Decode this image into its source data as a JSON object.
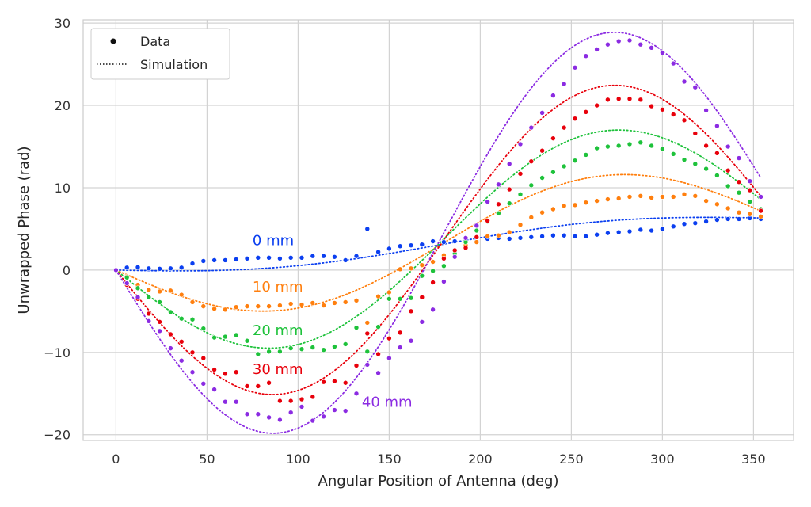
{
  "chart_data": {
    "type": "scatter",
    "title": "",
    "xlabel": "Angular Position of Antenna (deg)",
    "ylabel": "Unwrapped Phase (rad)",
    "xlim": [
      -18,
      372
    ],
    "ylim": [
      -20.7,
      30.4
    ],
    "xticks": [
      0,
      50,
      100,
      150,
      200,
      250,
      300,
      350
    ],
    "yticks": [
      -20,
      -10,
      0,
      10,
      20,
      30
    ],
    "ytick_labels": [
      "−20",
      "−10",
      "0",
      "10",
      "20",
      "30"
    ],
    "grid": true,
    "legend": {
      "placement": "top-left",
      "entries": [
        {
          "label": "Data",
          "marker": "dot"
        },
        {
          "label": "Simulation",
          "marker": "dotted-line"
        }
      ]
    },
    "series": [
      {
        "name": "0 mm",
        "color": "#0b3ff0",
        "data_x": [
          0,
          6,
          12,
          18,
          24,
          30,
          36,
          42,
          48,
          54,
          60,
          66,
          72,
          78,
          84,
          90,
          96,
          102,
          108,
          114,
          120,
          126,
          132,
          138,
          144,
          150,
          156,
          162,
          168,
          174,
          180,
          186,
          192,
          198,
          204,
          210,
          216,
          222,
          228,
          234,
          240,
          246,
          252,
          258,
          264,
          270,
          276,
          282,
          288,
          294,
          300,
          306,
          312,
          318,
          324,
          330,
          336,
          342,
          348,
          354
        ],
        "data_y": [
          0,
          0.3,
          0.35,
          0.2,
          0.15,
          0.2,
          0.3,
          0.8,
          1.1,
          1.2,
          1.2,
          1.3,
          1.4,
          1.5,
          1.5,
          1.4,
          1.5,
          1.5,
          1.7,
          1.7,
          1.6,
          1.2,
          1.7,
          5.0,
          2.2,
          2.6,
          2.9,
          3.0,
          3.1,
          3.5,
          3.4,
          3.5,
          3.4,
          3.5,
          3.8,
          3.9,
          3.8,
          3.9,
          4.0,
          4.1,
          4.2,
          4.2,
          4.1,
          4.1,
          4.3,
          4.5,
          4.6,
          4.7,
          4.9,
          4.8,
          5.0,
          5.3,
          5.6,
          5.7,
          5.9,
          6.1,
          6.2,
          6.2,
          6.3,
          6.2
        ],
        "sim_amplitude": 1.3,
        "sim_slope": 0.0174,
        "label_anchor": [
          75,
          3.0
        ]
      },
      {
        "name": "10 mm",
        "color": "#ff7f0e",
        "data_x": [
          0,
          6,
          12,
          18,
          24,
          30,
          36,
          42,
          48,
          54,
          60,
          66,
          72,
          78,
          84,
          90,
          96,
          102,
          108,
          114,
          120,
          126,
          132,
          138,
          144,
          150,
          156,
          162,
          168,
          174,
          180,
          186,
          192,
          198,
          204,
          210,
          216,
          222,
          228,
          234,
          240,
          246,
          252,
          258,
          264,
          270,
          276,
          282,
          288,
          294,
          300,
          306,
          312,
          318,
          324,
          330,
          336,
          342,
          348,
          354
        ],
        "data_y": [
          0,
          -0.8,
          -1.8,
          -2.4,
          -2.6,
          -2.5,
          -3.0,
          -3.9,
          -4.4,
          -4.7,
          -4.8,
          -4.5,
          -4.4,
          -4.4,
          -4.4,
          -4.3,
          -4.1,
          -4.2,
          -4.0,
          -4.3,
          -4.0,
          -3.9,
          -3.7,
          -6.4,
          -3.2,
          -2.7,
          0.1,
          0.2,
          0.6,
          1.0,
          1.8,
          2.3,
          3.0,
          3.4,
          4.1,
          4.2,
          4.6,
          5.5,
          6.4,
          7.0,
          7.4,
          7.8,
          7.9,
          8.2,
          8.4,
          8.6,
          8.7,
          8.9,
          9.0,
          8.8,
          8.9,
          8.9,
          9.2,
          9.0,
          8.4,
          8.0,
          7.5,
          7.0,
          6.8,
          6.5
        ],
        "sim_amplitude": 6.9,
        "sim_slope": 0.0174,
        "label_anchor": [
          75,
          -2.6
        ]
      },
      {
        "name": "20 mm",
        "color": "#1ec23b",
        "data_x": [
          0,
          6,
          12,
          18,
          24,
          30,
          36,
          42,
          48,
          54,
          60,
          66,
          72,
          78,
          84,
          90,
          96,
          102,
          108,
          114,
          120,
          126,
          132,
          138,
          144,
          150,
          156,
          162,
          168,
          174,
          180,
          186,
          192,
          198,
          204,
          210,
          216,
          222,
          228,
          234,
          240,
          246,
          252,
          258,
          264,
          270,
          276,
          282,
          288,
          294,
          300,
          306,
          312,
          318,
          324,
          330,
          336,
          342,
          348,
          354
        ],
        "data_y": [
          0,
          -0.9,
          -2.2,
          -3.3,
          -3.9,
          -5.1,
          -5.9,
          -6.0,
          -7.1,
          -8.2,
          -8.1,
          -7.9,
          -8.6,
          -10.2,
          -9.9,
          -9.9,
          -9.5,
          -9.6,
          -9.4,
          -9.7,
          -9.3,
          -9.0,
          -7.0,
          -9.9,
          -6.9,
          -3.5,
          -3.5,
          -3.4,
          -0.7,
          -0.1,
          0.5,
          2.0,
          3.4,
          4.8,
          5.9,
          6.9,
          8.1,
          9.2,
          10.3,
          11.2,
          11.9,
          12.6,
          13.3,
          14.0,
          14.8,
          15.0,
          15.1,
          15.3,
          15.5,
          15.1,
          14.7,
          14.1,
          13.4,
          12.9,
          12.3,
          11.5,
          10.2,
          9.4,
          8.3,
          7.4
        ],
        "sim_amplitude": 11.9,
        "sim_slope": 0.0174,
        "label_anchor": [
          75,
          -7.9
        ]
      },
      {
        "name": "30 mm",
        "color": "#e8000b",
        "data_x": [
          0,
          6,
          12,
          18,
          24,
          30,
          36,
          42,
          48,
          54,
          60,
          66,
          72,
          78,
          84,
          90,
          96,
          102,
          108,
          114,
          120,
          126,
          132,
          138,
          144,
          150,
          156,
          162,
          168,
          174,
          180,
          186,
          192,
          198,
          204,
          210,
          216,
          222,
          228,
          234,
          240,
          246,
          252,
          258,
          264,
          270,
          276,
          282,
          288,
          294,
          300,
          306,
          312,
          318,
          324,
          330,
          336,
          342,
          348,
          354
        ],
        "data_y": [
          0,
          -1.8,
          -3.5,
          -5.3,
          -6.3,
          -7.8,
          -8.7,
          -10.0,
          -10.7,
          -12.1,
          -12.6,
          -12.4,
          -14.1,
          -14.1,
          -13.7,
          -15.9,
          -15.9,
          -15.7,
          -15.4,
          -13.6,
          -13.5,
          -13.7,
          -11.6,
          -7.7,
          -10.2,
          -8.3,
          -7.6,
          -5.0,
          -3.3,
          -1.5,
          1.4,
          2.4,
          2.7,
          4.0,
          6.0,
          8.0,
          9.8,
          11.7,
          13.2,
          14.5,
          16.0,
          17.3,
          18.4,
          19.2,
          20.0,
          20.7,
          20.8,
          20.8,
          20.7,
          19.9,
          19.5,
          18.9,
          18.2,
          16.6,
          15.1,
          14.2,
          12.1,
          10.7,
          9.7,
          7.2
        ],
        "sim_amplitude": 17.8,
        "sim_slope": 0.0174,
        "label_anchor": [
          75,
          -12.6
        ]
      },
      {
        "name": "40 mm",
        "color": "#8b2be2",
        "data_x": [
          0,
          6,
          12,
          18,
          24,
          30,
          36,
          42,
          48,
          54,
          60,
          66,
          72,
          78,
          84,
          90,
          96,
          102,
          108,
          114,
          120,
          126,
          132,
          138,
          144,
          150,
          156,
          162,
          168,
          174,
          180,
          186,
          192,
          198,
          204,
          210,
          216,
          222,
          228,
          234,
          240,
          246,
          252,
          258,
          264,
          270,
          276,
          282,
          288,
          294,
          300,
          306,
          312,
          318,
          324,
          330,
          336,
          342,
          348,
          354
        ],
        "data_y": [
          0,
          -1.6,
          -3.3,
          -6.2,
          -7.4,
          -9.5,
          -11.0,
          -12.4,
          -13.8,
          -14.5,
          -16.0,
          -16.0,
          -17.5,
          -17.5,
          -17.9,
          -18.2,
          -17.3,
          -16.6,
          -18.3,
          -17.8,
          -17.0,
          -17.1,
          -15.0,
          -11.5,
          -12.5,
          -10.7,
          -9.4,
          -8.6,
          -6.3,
          -4.8,
          -1.4,
          1.6,
          3.9,
          5.4,
          8.3,
          10.4,
          12.9,
          15.3,
          17.3,
          19.1,
          21.2,
          22.6,
          24.6,
          26.0,
          26.8,
          27.4,
          27.8,
          27.9,
          27.4,
          27.0,
          26.4,
          25.1,
          22.9,
          22.2,
          19.4,
          17.5,
          15.0,
          13.6,
          10.8,
          8.9
        ],
        "sim_amplitude": 23.2,
        "sim_slope": 0.0174,
        "label_anchor": [
          135,
          -16.6
        ]
      }
    ]
  }
}
